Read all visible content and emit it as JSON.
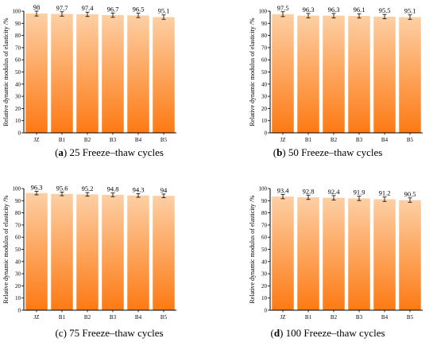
{
  "colors": {
    "bar_top": "#FDCFA4",
    "bar_bottom": "#FD7A14",
    "axis": "#000000"
  },
  "chart_data": [
    {
      "type": "bar",
      "panel_letter": "a",
      "caption_text": "25 Freeze–thaw cycles",
      "categories": [
        "JZ",
        "B1",
        "B2",
        "B3",
        "B4",
        "B5"
      ],
      "values": [
        98,
        97.7,
        97.4,
        96.7,
        96.5,
        95.1
      ],
      "value_labels": [
        "98",
        "97.7",
        "97.4",
        "96.7",
        "96.5",
        "95.1"
      ],
      "error": [
        2.0,
        1.8,
        1.8,
        1.8,
        1.8,
        1.8
      ],
      "ylabel": "Relative dynamic modulus of elasticity /%",
      "ylim": [
        0,
        100
      ],
      "yticks": [
        0,
        10,
        20,
        30,
        40,
        50,
        60,
        70,
        80,
        90,
        100
      ]
    },
    {
      "type": "bar",
      "panel_letter": "b",
      "caption_text": "50 Freeze–thaw cycles",
      "categories": [
        "JZ",
        "B1",
        "B2",
        "B3",
        "B4",
        "B5"
      ],
      "values": [
        97.5,
        96.3,
        96.3,
        96.1,
        95.5,
        95.1
      ],
      "value_labels": [
        "97.5",
        "96.3",
        "96.3",
        "96.1",
        "95.5",
        "95.1"
      ],
      "error": [
        2.0,
        1.8,
        1.8,
        1.8,
        1.8,
        1.8
      ],
      "ylabel": "Relative dynamic modulus of elasticity /%",
      "ylim": [
        0,
        100
      ],
      "yticks": [
        0,
        10,
        20,
        30,
        40,
        50,
        60,
        70,
        80,
        90,
        100
      ]
    },
    {
      "type": "bar",
      "panel_letter": "c",
      "caption_text": "75 Freeze–thaw cycles",
      "categories": [
        "JZ",
        "B1",
        "B2",
        "B3",
        "B4",
        "B5"
      ],
      "values": [
        96.3,
        95.6,
        95.2,
        94.8,
        94.3,
        94
      ],
      "value_labels": [
        "96.3",
        "95.6",
        "95.2",
        "94.8",
        "94.3",
        "94"
      ],
      "error": [
        1.5,
        1.5,
        1.5,
        1.5,
        1.5,
        1.5
      ],
      "ylabel": "Relative dynamic modulus of elasticity /%",
      "ylim": [
        0,
        100
      ],
      "yticks": [
        0,
        10,
        20,
        30,
        40,
        50,
        60,
        70,
        80,
        90,
        100
      ]
    },
    {
      "type": "bar",
      "panel_letter": "d",
      "caption_text": "100 Freeze–thaw cycles",
      "categories": [
        "JZ",
        "B1",
        "B2",
        "B3",
        "B4",
        "B5"
      ],
      "values": [
        93.4,
        92.8,
        92.4,
        91.9,
        91.2,
        90.5
      ],
      "value_labels": [
        "93.4",
        "92.8",
        "92.4",
        "91.9",
        "91.2",
        "90.5"
      ],
      "error": [
        1.8,
        1.8,
        1.8,
        1.8,
        1.8,
        1.8
      ],
      "ylabel": "Relative dynamic modulus of elasticity /%",
      "ylim": [
        0,
        100
      ],
      "yticks": [
        0,
        10,
        20,
        30,
        40,
        50,
        60,
        70,
        80,
        90,
        100
      ]
    }
  ]
}
